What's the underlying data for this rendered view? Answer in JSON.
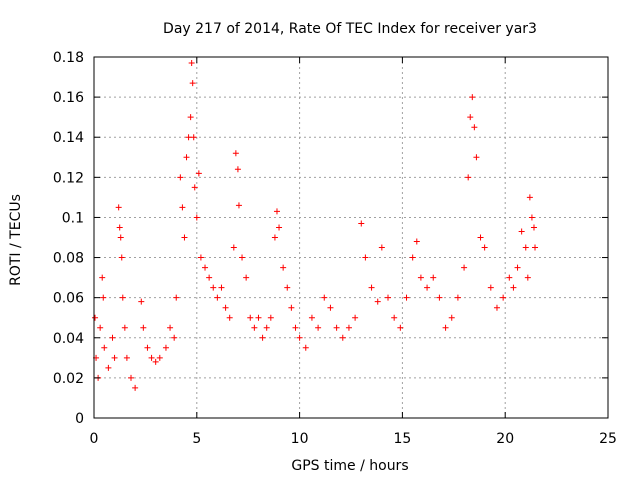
{
  "chart_data": {
    "type": "scatter",
    "title": "Day 217 of 2014, Rate Of TEC Index for receiver yar3",
    "xlabel": "GPS time / hours",
    "ylabel": "ROTI / TECUs",
    "xlim": [
      0,
      25
    ],
    "ylim": [
      0,
      0.18
    ],
    "xticks": [
      0,
      5,
      10,
      15,
      20,
      25
    ],
    "xtick_labels": [
      "0",
      "5",
      "10",
      "15",
      "20",
      "25"
    ],
    "yticks": [
      0,
      0.02,
      0.04,
      0.06,
      0.08,
      0.1,
      0.12,
      0.14,
      0.16,
      0.18
    ],
    "ytick_labels": [
      "0",
      "0.02",
      "0.04",
      "0.06",
      "0.08",
      "0.1",
      "0.12",
      "0.14",
      "0.16",
      "0.18"
    ],
    "grid": true,
    "marker": "+",
    "color": "#ff0000",
    "series": [
      {
        "name": "ROTI",
        "description": "Dense scatter of ROTI values from ~0 to ~21.5 h; values recorded as (hour, ROTI) pairs",
        "points": [
          [
            0.05,
            0.05
          ],
          [
            0.1,
            0.03
          ],
          [
            0.2,
            0.02
          ],
          [
            0.3,
            0.045
          ],
          [
            0.4,
            0.07
          ],
          [
            0.45,
            0.06
          ],
          [
            0.5,
            0.035
          ],
          [
            0.7,
            0.025
          ],
          [
            0.9,
            0.04
          ],
          [
            1.0,
            0.03
          ],
          [
            1.2,
            0.105
          ],
          [
            1.25,
            0.095
          ],
          [
            1.3,
            0.09
          ],
          [
            1.35,
            0.08
          ],
          [
            1.4,
            0.06
          ],
          [
            1.5,
            0.045
          ],
          [
            1.6,
            0.03
          ],
          [
            1.8,
            0.02
          ],
          [
            2.0,
            0.015
          ],
          [
            2.3,
            0.058
          ],
          [
            2.4,
            0.045
          ],
          [
            2.6,
            0.035
          ],
          [
            2.8,
            0.03
          ],
          [
            3.0,
            0.028
          ],
          [
            3.2,
            0.03
          ],
          [
            3.5,
            0.035
          ],
          [
            3.7,
            0.045
          ],
          [
            3.9,
            0.04
          ],
          [
            4.0,
            0.06
          ],
          [
            4.2,
            0.12
          ],
          [
            4.3,
            0.105
          ],
          [
            4.4,
            0.09
          ],
          [
            4.5,
            0.13
          ],
          [
            4.6,
            0.14
          ],
          [
            4.7,
            0.15
          ],
          [
            4.75,
            0.177
          ],
          [
            4.8,
            0.167
          ],
          [
            4.85,
            0.14
          ],
          [
            4.9,
            0.115
          ],
          [
            5.0,
            0.1
          ],
          [
            5.1,
            0.122
          ],
          [
            5.2,
            0.08
          ],
          [
            5.4,
            0.075
          ],
          [
            5.6,
            0.07
          ],
          [
            5.8,
            0.065
          ],
          [
            6.0,
            0.06
          ],
          [
            6.2,
            0.065
          ],
          [
            6.4,
            0.055
          ],
          [
            6.6,
            0.05
          ],
          [
            6.8,
            0.085
          ],
          [
            6.9,
            0.132
          ],
          [
            7.0,
            0.124
          ],
          [
            7.05,
            0.106
          ],
          [
            7.2,
            0.08
          ],
          [
            7.4,
            0.07
          ],
          [
            7.6,
            0.05
          ],
          [
            7.8,
            0.045
          ],
          [
            8.0,
            0.05
          ],
          [
            8.2,
            0.04
          ],
          [
            8.4,
            0.045
          ],
          [
            8.6,
            0.05
          ],
          [
            8.8,
            0.09
          ],
          [
            8.9,
            0.103
          ],
          [
            9.0,
            0.095
          ],
          [
            9.2,
            0.075
          ],
          [
            9.4,
            0.065
          ],
          [
            9.6,
            0.055
          ],
          [
            9.8,
            0.045
          ],
          [
            10.0,
            0.04
          ],
          [
            10.3,
            0.035
          ],
          [
            10.6,
            0.05
          ],
          [
            10.9,
            0.045
          ],
          [
            11.2,
            0.06
          ],
          [
            11.5,
            0.055
          ],
          [
            11.8,
            0.045
          ],
          [
            12.1,
            0.04
          ],
          [
            12.4,
            0.045
          ],
          [
            12.7,
            0.05
          ],
          [
            13.0,
            0.097
          ],
          [
            13.2,
            0.08
          ],
          [
            13.5,
            0.065
          ],
          [
            13.8,
            0.058
          ],
          [
            14.0,
            0.085
          ],
          [
            14.3,
            0.06
          ],
          [
            14.6,
            0.05
          ],
          [
            14.9,
            0.045
          ],
          [
            15.2,
            0.06
          ],
          [
            15.5,
            0.08
          ],
          [
            15.7,
            0.088
          ],
          [
            15.9,
            0.07
          ],
          [
            16.2,
            0.065
          ],
          [
            16.5,
            0.07
          ],
          [
            16.8,
            0.06
          ],
          [
            17.1,
            0.045
          ],
          [
            17.4,
            0.05
          ],
          [
            17.7,
            0.06
          ],
          [
            18.0,
            0.075
          ],
          [
            18.2,
            0.12
          ],
          [
            18.3,
            0.15
          ],
          [
            18.4,
            0.16
          ],
          [
            18.5,
            0.145
          ],
          [
            18.6,
            0.13
          ],
          [
            18.8,
            0.09
          ],
          [
            19.0,
            0.085
          ],
          [
            19.3,
            0.065
          ],
          [
            19.6,
            0.055
          ],
          [
            19.9,
            0.06
          ],
          [
            20.2,
            0.07
          ],
          [
            20.4,
            0.065
          ],
          [
            20.6,
            0.075
          ],
          [
            20.8,
            0.093
          ],
          [
            21.0,
            0.085
          ],
          [
            21.1,
            0.07
          ],
          [
            21.2,
            0.11
          ],
          [
            21.3,
            0.1
          ],
          [
            21.4,
            0.095
          ],
          [
            21.45,
            0.085
          ]
        ]
      }
    ]
  }
}
